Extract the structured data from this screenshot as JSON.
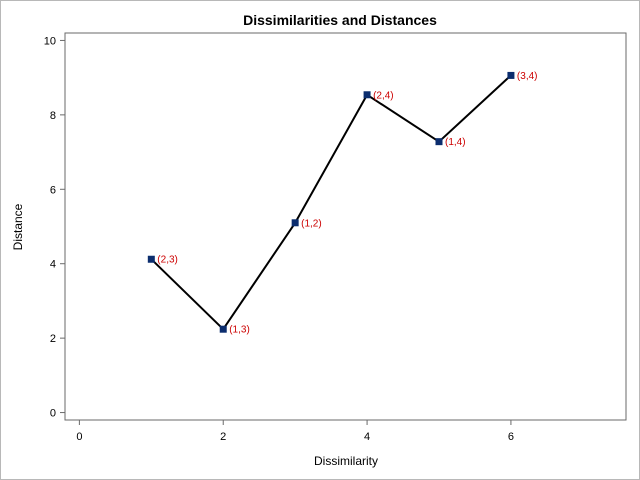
{
  "chart_data": {
    "type": "line",
    "title": "Dissimilarities and Distances",
    "xlabel": "Dissimilarity",
    "ylabel": "Distance",
    "xlim": [
      -0.2,
      7.6
    ],
    "ylim": [
      -0.2,
      10.2
    ],
    "xticks": [
      0,
      2,
      4,
      6
    ],
    "yticks": [
      0,
      2,
      4,
      6,
      8,
      10
    ],
    "grid": false,
    "series": [
      {
        "x": [
          1,
          2,
          3,
          4,
          5,
          6
        ],
        "y": [
          4.12,
          2.24,
          5.1,
          8.54,
          7.28,
          9.06
        ],
        "labels": [
          "(2,3)",
          "(1,3)",
          "(1,2)",
          "(2,4)",
          "(1,4)",
          "(3,4)"
        ]
      }
    ]
  },
  "colors": {
    "line": "#000000",
    "marker": "#0b2d6e",
    "data_label": "#cc0000",
    "axis": "#6a6a6a"
  }
}
